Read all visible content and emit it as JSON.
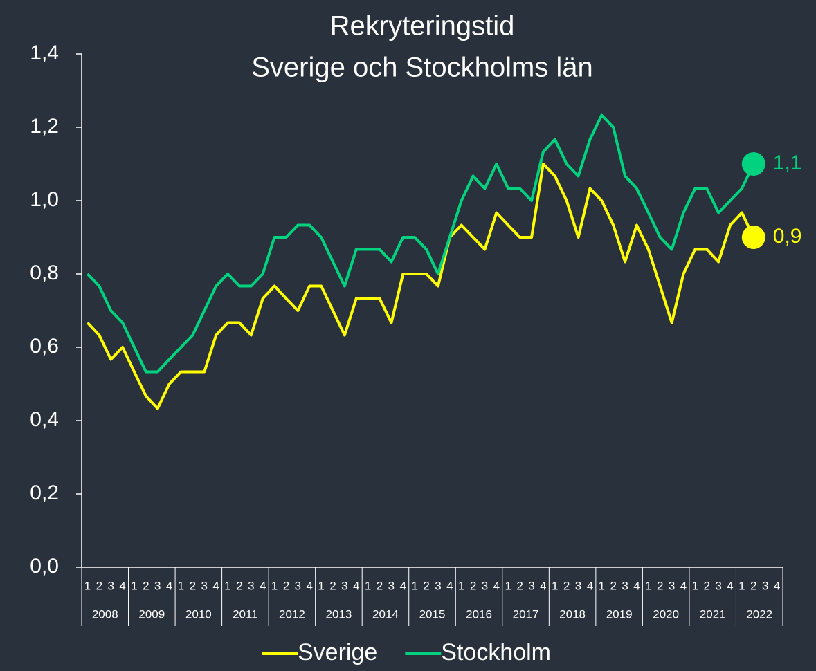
{
  "chart_data": {
    "type": "line",
    "title": "Rekryteringstid",
    "subtitle": "Sverige och Stockholms län",
    "categories": [
      "1",
      "2",
      "3",
      "4",
      "1",
      "2",
      "3",
      "4",
      "1",
      "2",
      "3",
      "4",
      "1",
      "2",
      "3",
      "4",
      "1",
      "2",
      "3",
      "4",
      "1",
      "2",
      "3",
      "4",
      "1",
      "2",
      "3",
      "4",
      "1",
      "2",
      "3",
      "4",
      "1",
      "2",
      "3",
      "4",
      "1",
      "2",
      "3",
      "4",
      "1",
      "2",
      "3",
      "4",
      "1",
      "2",
      "3",
      "4",
      "1",
      "2",
      "3",
      "4",
      "1",
      "2",
      "3",
      "4",
      "1",
      "2",
      "3",
      "4"
    ],
    "years": [
      "2008",
      "2009",
      "2010",
      "2011",
      "2012",
      "2013",
      "2014",
      "2015",
      "2016",
      "2017",
      "2018",
      "2019",
      "2020",
      "2021",
      "2022"
    ],
    "series": [
      {
        "name": "Sverige",
        "color": "#ffff00",
        "end_label": "0,9",
        "values": [
          0.667,
          0.633,
          0.567,
          0.6,
          0.533,
          0.467,
          0.433,
          0.5,
          0.533,
          0.533,
          0.533,
          0.633,
          0.667,
          0.667,
          0.633,
          0.733,
          0.767,
          0.733,
          0.7,
          0.767,
          0.767,
          0.7,
          0.633,
          0.733,
          0.733,
          0.733,
          0.667,
          0.8,
          0.8,
          0.8,
          0.767,
          0.9,
          0.933,
          0.9,
          0.867,
          0.967,
          0.933,
          0.9,
          0.9,
          1.1,
          1.067,
          1.0,
          0.9,
          1.033,
          1.0,
          0.933,
          0.833,
          0.933,
          0.867,
          0.767,
          0.667,
          0.8,
          0.867,
          0.867,
          0.833,
          0.933,
          0.967,
          0.9,
          null,
          null
        ]
      },
      {
        "name": "Stockholm",
        "color": "#00d27f",
        "end_label": "1,1",
        "values": [
          0.8,
          0.767,
          0.7,
          0.667,
          0.6,
          0.533,
          0.533,
          0.567,
          0.6,
          0.633,
          0.7,
          0.767,
          0.8,
          0.767,
          0.767,
          0.8,
          0.9,
          0.9,
          0.933,
          0.933,
          0.9,
          0.833,
          0.767,
          0.867,
          0.867,
          0.867,
          0.833,
          0.9,
          0.9,
          0.867,
          0.8,
          0.9,
          1.0,
          1.067,
          1.033,
          1.1,
          1.033,
          1.033,
          1.0,
          1.133,
          1.167,
          1.1,
          1.067,
          1.167,
          1.233,
          1.2,
          1.067,
          1.033,
          0.967,
          0.9,
          0.867,
          0.967,
          1.033,
          1.033,
          0.967,
          1.0,
          1.033,
          1.1,
          null,
          null
        ]
      }
    ],
    "ylim": [
      0,
      1.4
    ],
    "yticks": [
      {
        "value": 0,
        "label": "0,0"
      },
      {
        "value": 0.2,
        "label": "0,2"
      },
      {
        "value": 0.4,
        "label": "0,4"
      },
      {
        "value": 0.6,
        "label": "0,6"
      },
      {
        "value": 0.8,
        "label": "0,8"
      },
      {
        "value": 1.0,
        "label": "1,0"
      },
      {
        "value": 1.2,
        "label": "1,2"
      },
      {
        "value": 1.4,
        "label": "1,4"
      }
    ],
    "grid": false,
    "legend": "bottom"
  }
}
